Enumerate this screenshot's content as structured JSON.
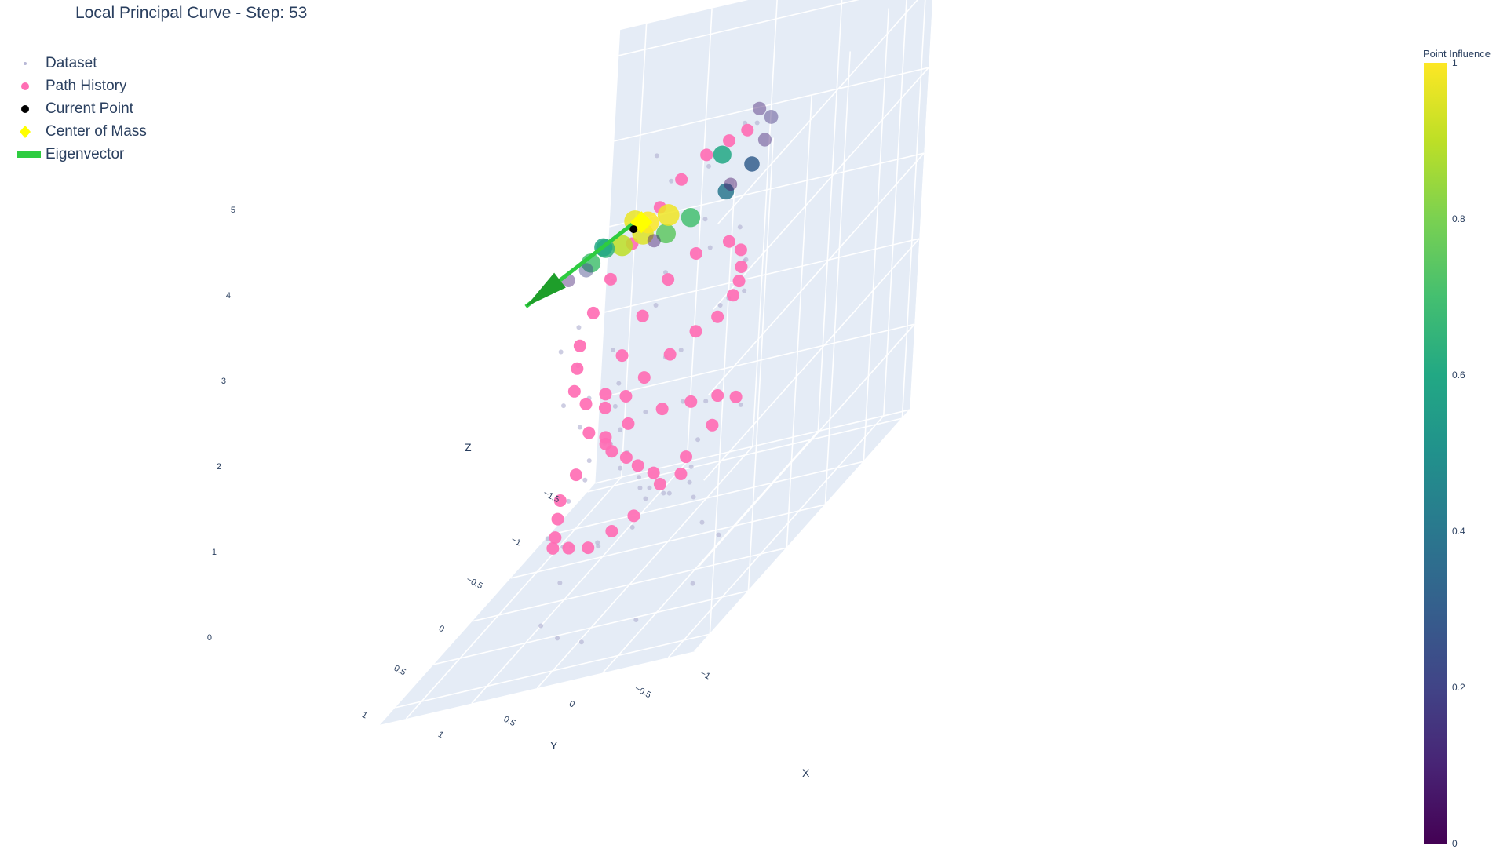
{
  "chart_data": {
    "type": "scatter",
    "mode": "3d",
    "title": "Local Principal Curve - Step: 53",
    "legend": {
      "position": "top-left",
      "items": [
        {
          "label": "Dataset",
          "symbol": "small-dot",
          "color": "#b8b8d6"
        },
        {
          "label": "Path History",
          "symbol": "circle",
          "color": "#ff6eb4"
        },
        {
          "label": "Current Point",
          "symbol": "circle",
          "color": "#000000"
        },
        {
          "label": "Center of Mass",
          "symbol": "diamond",
          "color": "#ffff00"
        },
        {
          "label": "Eigenvector",
          "symbol": "line",
          "color": "#2ecc40"
        }
      ]
    },
    "axes": {
      "x": {
        "label": "X",
        "range": [
          -1.2,
          1.2
        ],
        "ticks": [
          "−1",
          "−0.5",
          "0",
          "0.5",
          "1"
        ],
        "values": [
          -1,
          -0.5,
          0,
          0.5,
          1
        ]
      },
      "y": {
        "label": "Y",
        "range": [
          -1.6,
          1.2
        ],
        "ticks": [
          "−1.5",
          "−1",
          "−0.5",
          "0",
          "0.5",
          "1"
        ],
        "values": [
          -1.5,
          -1,
          -0.5,
          0,
          0.5,
          1
        ]
      },
      "z": {
        "label": "Z",
        "range": [
          0,
          5.3
        ],
        "ticks": [
          "0",
          "1",
          "2",
          "3",
          "4",
          "5"
        ],
        "values": [
          0,
          1,
          2,
          3,
          4,
          5
        ]
      }
    },
    "colorbar": {
      "title": "Point Influence",
      "colorscale": "Viridis",
      "range": [
        0,
        1
      ],
      "ticks": [
        "0",
        "0.2",
        "0.4",
        "0.6",
        "0.8",
        "1"
      ],
      "values": [
        0,
        0.2,
        0.4,
        0.6,
        0.8,
        1
      ]
    },
    "series": [
      {
        "name": "Path History",
        "color": "#ff6eb4",
        "points": [
          [
            0.18,
            -0.95,
            0.4
          ],
          [
            0.28,
            -0.75,
            0.65
          ],
          [
            0.32,
            -0.6,
            0.9
          ],
          [
            0.33,
            -0.45,
            1.15
          ],
          [
            0.35,
            -0.28,
            1.4
          ],
          [
            0.3,
            -0.1,
            1.65
          ],
          [
            0.22,
            0.05,
            1.85
          ],
          [
            0.05,
            0.05,
            1.95
          ],
          [
            -0.15,
            -0.05,
            1.95
          ],
          [
            -0.33,
            -0.12,
            1.9
          ],
          [
            -0.5,
            -0.18,
            1.85
          ],
          [
            -0.62,
            -0.22,
            1.75
          ],
          [
            -0.6,
            0.05,
            1.7
          ],
          [
            -0.55,
            0.3,
            1.6
          ],
          [
            -0.5,
            0.55,
            1.55
          ],
          [
            -0.45,
            0.8,
            1.45
          ],
          [
            -0.37,
            0.95,
            1.45
          ],
          [
            -0.25,
            1.05,
            1.4
          ],
          [
            -0.1,
            1.05,
            1.45
          ],
          [
            0.05,
            1.0,
            1.45
          ],
          [
            0.12,
            0.85,
            1.45
          ],
          [
            0.22,
            0.65,
            1.5
          ],
          [
            0.32,
            0.45,
            1.55
          ],
          [
            0.32,
            0.25,
            1.65
          ],
          [
            0.35,
            0.05,
            1.95
          ],
          [
            0.35,
            -0.15,
            2.2
          ],
          [
            0.35,
            -0.35,
            2.45
          ],
          [
            0.32,
            -0.55,
            2.7
          ],
          [
            0.25,
            -0.75,
            2.9
          ],
          [
            0.1,
            -0.85,
            3.05
          ],
          [
            -0.15,
            -0.85,
            3.1
          ],
          [
            -0.3,
            -0.75,
            3.05
          ],
          [
            -0.45,
            -0.5,
            3.05
          ],
          [
            -0.55,
            -0.3,
            3.05
          ],
          [
            -0.65,
            -0.05,
            3.1
          ],
          [
            -0.65,
            0.15,
            3.05
          ],
          [
            -0.6,
            0.35,
            3.1
          ],
          [
            -0.55,
            0.6,
            3.1
          ],
          [
            -0.5,
            0.85,
            3.1
          ],
          [
            -0.45,
            1.0,
            3.05
          ],
          [
            -0.35,
            1.1,
            3.05
          ],
          [
            -0.2,
            1.1,
            3.15
          ],
          [
            -0.05,
            1.0,
            3.25
          ],
          [
            0.05,
            0.8,
            3.35
          ],
          [
            0.15,
            0.6,
            3.45
          ],
          [
            0.2,
            0.35,
            3.6
          ],
          [
            0.22,
            0.1,
            3.75
          ],
          [
            0.18,
            -0.1,
            3.95
          ],
          [
            0.12,
            -0.35,
            4.1
          ],
          [
            0.05,
            -0.5,
            4.25
          ],
          [
            -0.05,
            -0.65,
            4.35
          ],
          [
            -0.18,
            -0.72,
            4.4
          ],
          [
            -0.3,
            -0.75,
            4.45
          ]
        ]
      },
      {
        "name": "Dataset",
        "color": "#b8b8d6",
        "points": [
          [
            0.1,
            -1.0,
            0.05
          ],
          [
            0.25,
            -0.85,
            0.3
          ],
          [
            0.35,
            -0.7,
            0.55
          ],
          [
            0.28,
            -0.55,
            0.8
          ],
          [
            0.4,
            -0.5,
            1.0
          ],
          [
            0.3,
            -0.4,
            1.25
          ],
          [
            0.42,
            -0.3,
            1.5
          ],
          [
            0.25,
            -0.2,
            1.7
          ],
          [
            0.15,
            0.1,
            1.8
          ],
          [
            -0.05,
            0.0,
            2.0
          ],
          [
            -0.25,
            -0.15,
            1.9
          ],
          [
            -0.4,
            -0.2,
            1.8
          ],
          [
            -0.7,
            -0.15,
            1.7
          ],
          [
            -0.55,
            0.15,
            1.65
          ],
          [
            -0.65,
            0.4,
            1.55
          ],
          [
            -0.45,
            0.65,
            1.5
          ],
          [
            -0.5,
            0.9,
            1.4
          ],
          [
            -0.3,
            1.0,
            1.35
          ],
          [
            -0.15,
            1.1,
            1.5
          ],
          [
            0.0,
            0.95,
            1.4
          ],
          [
            0.15,
            0.9,
            1.5
          ],
          [
            0.2,
            0.55,
            1.6
          ],
          [
            0.4,
            0.35,
            1.5
          ],
          [
            0.28,
            0.15,
            1.7
          ],
          [
            0.45,
            0.0,
            2.0
          ],
          [
            0.28,
            -0.2,
            2.25
          ],
          [
            0.45,
            -0.4,
            2.5
          ],
          [
            0.25,
            -0.6,
            2.75
          ],
          [
            0.3,
            -0.8,
            2.95
          ],
          [
            0.05,
            -0.95,
            3.0
          ],
          [
            -0.2,
            -0.9,
            3.2
          ],
          [
            -0.4,
            -0.65,
            3.0
          ],
          [
            -0.5,
            -0.45,
            3.15
          ],
          [
            -0.65,
            -0.2,
            3.0
          ],
          [
            -0.7,
            0.1,
            3.2
          ],
          [
            -0.55,
            0.45,
            3.0
          ],
          [
            -0.6,
            0.75,
            3.2
          ],
          [
            -0.4,
            1.05,
            3.0
          ],
          [
            -0.25,
            1.15,
            3.25
          ],
          [
            0.0,
            1.05,
            3.15
          ],
          [
            0.1,
            0.7,
            3.3
          ],
          [
            0.25,
            0.45,
            3.55
          ],
          [
            0.15,
            0.2,
            3.8
          ],
          [
            0.3,
            0.0,
            3.7
          ],
          [
            0.22,
            -0.3,
            4.0
          ],
          [
            0.1,
            -0.45,
            4.3
          ],
          [
            -0.1,
            -0.6,
            4.25
          ],
          [
            -0.25,
            -0.8,
            4.5
          ],
          [
            -0.4,
            -0.7,
            4.55
          ],
          [
            0.5,
            -1.1,
            0.2
          ],
          [
            0.6,
            -0.6,
            0.1
          ],
          [
            0.65,
            -0.2,
            0.05
          ],
          [
            0.5,
            0.3,
            0.0
          ],
          [
            0.2,
            0.6,
            0.05
          ],
          [
            -0.1,
            0.8,
            0.1
          ],
          [
            -0.4,
            0.6,
            0.05
          ],
          [
            -0.6,
            0.2,
            0.0
          ],
          [
            -0.5,
            -0.3,
            0.1
          ],
          [
            -0.2,
            -0.6,
            0.05
          ],
          [
            0.4,
            -1.2,
            0.0
          ],
          [
            -0.7,
            0.5,
            1.45
          ],
          [
            0.5,
            -0.2,
            1.2
          ],
          [
            0.1,
            -0.95,
            3.35
          ],
          [
            -0.75,
            0.3,
            3.3
          ],
          [
            0.35,
            0.5,
            3.35
          ],
          [
            0.25,
            -0.5,
            4.6
          ]
        ]
      },
      {
        "name": "Point Influence",
        "points": [
          [
            -0.45,
            -0.8,
            4.5,
            0.15
          ],
          [
            -0.55,
            -0.55,
            4.45,
            0.1
          ],
          [
            -0.6,
            -0.3,
            4.4,
            0.3
          ],
          [
            -0.55,
            -0.05,
            4.35,
            0.4
          ],
          [
            -0.4,
            0.15,
            4.3,
            0.7
          ],
          [
            -0.3,
            0.3,
            4.3,
            0.75
          ],
          [
            -0.15,
            0.35,
            4.4,
            0.95
          ],
          [
            -0.05,
            0.45,
            4.4,
            0.9
          ],
          [
            0.05,
            0.5,
            4.45,
            0.65
          ],
          [
            0.1,
            0.6,
            4.4,
            0.7
          ],
          [
            0.05,
            0.75,
            4.45,
            0.2
          ],
          [
            0.1,
            0.9,
            4.5,
            0.1
          ],
          [
            -0.1,
            0.2,
            4.4,
            1.0
          ],
          [
            -0.2,
            0.1,
            4.35,
            0.98
          ],
          [
            0.0,
            0.2,
            4.45,
            0.97
          ],
          [
            -0.35,
            0.55,
            4.45,
            0.08
          ],
          [
            -0.2,
            -0.6,
            4.35,
            0.6
          ],
          [
            -0.3,
            -0.9,
            4.55,
            0.1
          ],
          [
            -0.5,
            -0.2,
            4.3,
            0.05
          ],
          [
            0.15,
            0.35,
            4.35,
            0.6
          ]
        ]
      }
    ],
    "current_point": [
      -0.02,
      0.25,
      4.4
    ],
    "center_of_mass": [
      -0.05,
      0.2,
      4.42
    ],
    "eigenvector": {
      "start": [
        0.05,
        0.15,
        4.38
      ],
      "end": [
        0.25,
        1.2,
        4.55
      ]
    }
  }
}
